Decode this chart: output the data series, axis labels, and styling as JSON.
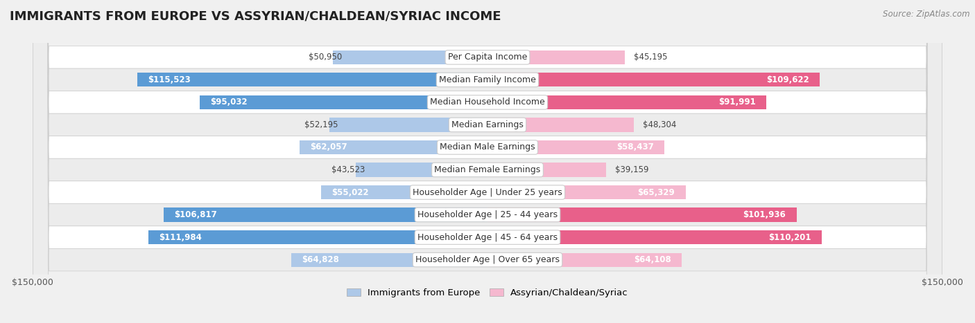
{
  "title": "IMMIGRANTS FROM EUROPE VS ASSYRIAN/CHALDEAN/SYRIAC INCOME",
  "source": "Source: ZipAtlas.com",
  "categories": [
    "Per Capita Income",
    "Median Family Income",
    "Median Household Income",
    "Median Earnings",
    "Median Male Earnings",
    "Median Female Earnings",
    "Householder Age | Under 25 years",
    "Householder Age | 25 - 44 years",
    "Householder Age | 45 - 64 years",
    "Householder Age | Over 65 years"
  ],
  "left_values": [
    50950,
    115523,
    95032,
    52195,
    62057,
    43523,
    55022,
    106817,
    111984,
    64828
  ],
  "right_values": [
    45195,
    109622,
    91991,
    48304,
    58437,
    39159,
    65329,
    101936,
    110201,
    64108
  ],
  "left_labels": [
    "$50,950",
    "$115,523",
    "$95,032",
    "$52,195",
    "$62,057",
    "$43,523",
    "$55,022",
    "$106,817",
    "$111,984",
    "$64,828"
  ],
  "right_labels": [
    "$45,195",
    "$109,622",
    "$91,991",
    "$48,304",
    "$58,437",
    "$39,159",
    "$65,329",
    "$101,936",
    "$110,201",
    "$64,108"
  ],
  "left_color_light": "#adc8e8",
  "left_color_dark": "#5b9bd5",
  "right_color_light": "#f5b8cf",
  "right_color_dark": "#e8608a",
  "dark_threshold": 80000,
  "bar_height": 0.62,
  "max_val": 150000,
  "legend_left": "Immigrants from Europe",
  "legend_right": "Assyrian/Chaldean/Syriac",
  "bg_color": "#f0f0f0",
  "row_bg": "#f7f7f7",
  "row_border": "#dddddd",
  "label_fontsize": 9.0,
  "title_fontsize": 13,
  "value_fontsize": 8.5,
  "inside_label_threshold": 55000
}
